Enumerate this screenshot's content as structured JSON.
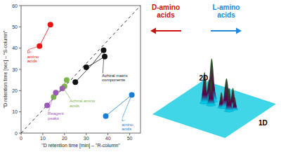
{
  "chart_data": [
    {
      "type": "scatter",
      "xlabel": "\"D retention time [min] – \"R-column\"",
      "ylabel": "\"D retention time [sec] – \"S-column\"",
      "xlim": [
        0,
        55
      ],
      "ylim": [
        0,
        60
      ],
      "xticks": [
        0,
        10,
        20,
        30,
        40,
        50
      ],
      "yticks": [
        0,
        10,
        20,
        30,
        40,
        50,
        60
      ],
      "grid": false,
      "series": [
        {
          "color": "#ee1111",
          "x": [
            8.5,
            13.5
          ],
          "values": [
            41,
            51
          ],
          "centroid_x": 11,
          "centroid_y": 46
        },
        {
          "color": "#111111",
          "x": [
            25,
            30,
            38,
            38.5
          ],
          "values": [
            24,
            31,
            39,
            36
          ],
          "centroid_x": 32.875,
          "centroid_y": 32.5
        },
        {
          "color": "#7ab648",
          "x": [
            15,
            20,
            21
          ],
          "values": [
            17,
            22,
            25
          ],
          "centroid_x": 18.666666666666668,
          "centroid_y": 21.333333333333332
        },
        {
          "color": "#9b59b6",
          "x": [
            12,
            16,
            19
          ],
          "values": [
            13,
            19,
            21
          ],
          "centroid_x": 15.666666666666666,
          "centroid_y": 17.666666666666668
        },
        {
          "color": "#1a7fd4",
          "x": [
            39,
            51
          ],
          "values": [
            8,
            18
          ],
          "centroid_x": 45,
          "centroid_y": 13
        }
      ],
      "reference_line": {
        "x": [
          0,
          55
        ],
        "y": [
          0,
          60
        ],
        "line_style": "dashed"
      },
      "annotations": [
        {
          "text": "D-\namino\nacids",
          "x": 8.5,
          "y": 41,
          "text_x": 2.5,
          "text_y": 36,
          "color": "#ee1111"
        },
        {
          "text": "Achiral matrix\ncomponents",
          "x": 38.2,
          "y": 37.5,
          "text_x": 37,
          "text_y": 26,
          "color": "#111111"
        },
        {
          "text": "Achiral amino\nacids",
          "x": 19,
          "y": 22,
          "text_x": 22,
          "text_y": 14,
          "color": "#7ab648"
        },
        {
          "text": "Reagent\npeaks",
          "x": 15,
          "y": 18,
          "text_x": 12,
          "text_y": 8,
          "color": "#9b59b6"
        },
        {
          "text": "L-\namino\nacids",
          "x": 51,
          "y": 18,
          "text_x": 46,
          "text_y": 4,
          "color": "#1a7fd4"
        }
      ]
    },
    {
      "type": "surface",
      "tick_labels": false,
      "xlim": [
        0,
        1
      ],
      "ylim": [
        0,
        1
      ],
      "zlim": [
        -0.05,
        1.8
      ],
      "color": "#00c8e0",
      "xlabel": "1D",
      "ylabel": "2D",
      "peaks_left": [
        [
          0.38,
          0.62,
          0.022,
          0.022,
          1.4
        ],
        [
          0.33,
          0.55,
          0.018,
          0.018,
          1.0
        ],
        [
          0.42,
          0.55,
          0.018,
          0.018,
          0.8
        ],
        [
          0.3,
          0.68,
          0.015,
          0.015,
          0.6
        ],
        [
          0.35,
          0.7,
          0.014,
          0.014,
          0.5
        ]
      ],
      "peaks_right": [
        [
          0.6,
          0.6,
          0.022,
          0.022,
          0.95
        ],
        [
          0.67,
          0.55,
          0.018,
          0.018,
          0.75
        ],
        [
          0.64,
          0.67,
          0.016,
          0.016,
          0.6
        ],
        [
          0.55,
          0.57,
          0.015,
          0.015,
          0.5
        ],
        [
          0.7,
          0.62,
          0.013,
          0.013,
          0.4
        ]
      ],
      "labels": [
        {
          "text": "D-amino\nacids",
          "color": "#cc1111",
          "arrow": "left"
        },
        {
          "text": "L-amino\nacids",
          "color": "#2288dd",
          "arrow": "right"
        }
      ]
    }
  ]
}
